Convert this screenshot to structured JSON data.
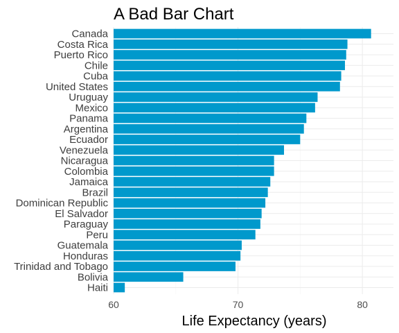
{
  "chart_data": {
    "type": "bar",
    "orientation": "horizontal",
    "title": "A Bad Bar Chart",
    "xlabel": "Life Expectancy (years)",
    "ylabel": "",
    "xlim": [
      60,
      82.5
    ],
    "xticks": [
      60,
      70,
      80
    ],
    "grid": true,
    "bar_color": "#0099cc",
    "categories": [
      "Canada",
      "Costa Rica",
      "Puerto Rico",
      "Chile",
      "Cuba",
      "United States",
      "Uruguay",
      "Mexico",
      "Panama",
      "Argentina",
      "Ecuador",
      "Venezuela",
      "Nicaragua",
      "Colombia",
      "Jamaica",
      "Brazil",
      "Dominican Republic",
      "El Salvador",
      "Paraguay",
      "Peru",
      "Guatemala",
      "Honduras",
      "Trinidad and Tobago",
      "Bolivia",
      "Haiti"
    ],
    "values": [
      80.7,
      78.8,
      78.7,
      78.6,
      78.3,
      78.2,
      76.4,
      76.2,
      75.5,
      75.3,
      75.0,
      73.7,
      72.9,
      72.9,
      72.6,
      72.4,
      72.2,
      71.9,
      71.8,
      71.4,
      70.3,
      70.2,
      69.8,
      65.6,
      60.9
    ]
  }
}
